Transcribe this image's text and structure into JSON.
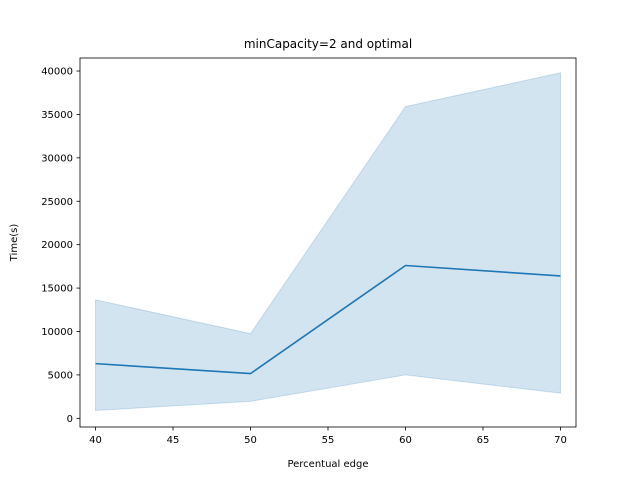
{
  "chart_data": {
    "type": "line",
    "title": "minCapacity=2 and optimal",
    "xlabel": "Percentual edge",
    "ylabel": "Time(s)",
    "xlim": [
      39,
      71
    ],
    "ylim": [
      -1000,
      41500
    ],
    "xticks": [
      40,
      45,
      50,
      55,
      60,
      65,
      70
    ],
    "yticks": [
      0,
      5000,
      10000,
      15000,
      20000,
      25000,
      30000,
      35000,
      40000
    ],
    "grid": false,
    "series": [
      {
        "x": [
          40,
          50,
          60,
          70
        ],
        "values": [
          6300,
          5150,
          17600,
          16400
        ],
        "ci_lower": [
          900,
          1950,
          5000,
          2900
        ],
        "ci_upper": [
          13650,
          9750,
          35900,
          39800
        ],
        "color": "#1f77b4"
      }
    ]
  }
}
